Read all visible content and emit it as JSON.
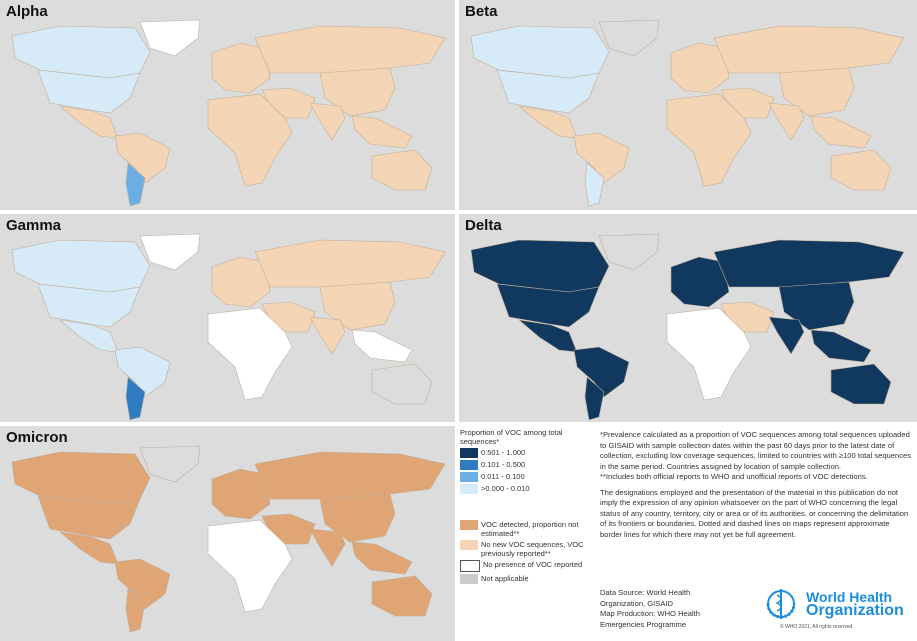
{
  "panels": [
    {
      "title": "Alpha",
      "fills": {
        "greenland": "#ffffff",
        "canada": "#d6eaf7",
        "usa": "#d6eaf7",
        "mexico": "#f3d5b5",
        "samerica": "#f3d5b5",
        "argentina": "#6aaee3",
        "europe": "#f3d5b5",
        "russia": "#f3d5b5",
        "mideast": "#f3d5b5",
        "africa": "#f3d5b5",
        "china": "#f3d5b5",
        "india": "#f3d5b5",
        "seasia": "#f3d5b5",
        "australia": "#f3d5b5"
      }
    },
    {
      "title": "Beta",
      "fills": {
        "greenland": "#dcdcdc",
        "canada": "#d6eaf7",
        "usa": "#d6eaf7",
        "mexico": "#f3d5b5",
        "samerica": "#f3d5b5",
        "argentina": "#d6eaf7",
        "europe": "#f3d5b5",
        "russia": "#f3d5b5",
        "mideast": "#f3d5b5",
        "africa": "#f3d5b5",
        "china": "#f3d5b5",
        "india": "#f3d5b5",
        "seasia": "#f3d5b5",
        "australia": "#f3d5b5"
      }
    },
    {
      "title": "Gamma",
      "fills": {
        "greenland": "#ffffff",
        "canada": "#d6eaf7",
        "usa": "#d6eaf7",
        "mexico": "#d6eaf7",
        "samerica": "#d6eaf7",
        "argentina": "#2f7bbf",
        "europe": "#f3d5b5",
        "russia": "#f3d5b5",
        "mideast": "#f3d5b5",
        "africa": "#ffffff",
        "china": "#f3d5b5",
        "india": "#f3d5b5",
        "seasia": "#ffffff",
        "australia": "#dcdcdc"
      }
    },
    {
      "title": "Delta",
      "fills": {
        "greenland": "#dcdcdc",
        "canada": "#11385e",
        "usa": "#11385e",
        "mexico": "#11385e",
        "samerica": "#11385e",
        "argentina": "#11385e",
        "europe": "#11385e",
        "russia": "#11385e",
        "mideast": "#f3d5b5",
        "africa": "#ffffff",
        "china": "#11385e",
        "india": "#11385e",
        "seasia": "#11385e",
        "australia": "#11385e"
      }
    },
    {
      "title": "Omicron",
      "fills": {
        "greenland": "#dcdcdc",
        "canada": "#e0a575",
        "usa": "#e0a575",
        "mexico": "#e0a575",
        "samerica": "#e0a575",
        "argentina": "#e0a575",
        "europe": "#e0a575",
        "russia": "#e0a575",
        "mideast": "#e0a575",
        "africa": "#ffffff",
        "china": "#e0a575",
        "india": "#e0a575",
        "seasia": "#e0a575",
        "australia": "#e0a575"
      }
    }
  ],
  "legend": {
    "title": "Proportion of VOC among total sequences*",
    "items": [
      {
        "label": "0.501 - 1.000",
        "color": "#11385e"
      },
      {
        "label": "0.101 - 0.500",
        "color": "#2f7bbf"
      },
      {
        "label": "0.011 - 0.100",
        "color": "#6aaee3"
      },
      {
        "label": ">0.000 - 0.010",
        "color": "#d6eaf7"
      }
    ],
    "items2": [
      {
        "label": "VOC detected, proportion not estimated**",
        "color": "#e0a575"
      },
      {
        "label": "No new VOC sequences, VOC previously reported**",
        "color": "#f3d5b5"
      },
      {
        "label": "No presence of VOC reported",
        "color": "#ffffff"
      },
      {
        "label": "Not applicable",
        "color": "#cccccc"
      }
    ]
  },
  "notes": {
    "n1": "*Prevalence calculated as a proportion of VOC sequences among total sequences uploaded to GISAID with sample collection dates within the past 60 days prior to the latest date of collection, excluding low coverage sequences, limited to countries with ≥100 total sequences in the same period. Countries assigned by location of sample collection.",
    "n2": "**Includes both official reports to WHO and unofficial reports of VOC detections.",
    "disclaimer": "The designations employed and the presentation of the material in this publication do not imply the expression of any opinion whatsoever on the part of WHO concerning the legal status of any country, territory, city or area or of its authorities, or concerning the delimitation of its frontiers or boundaries. Dotted and dashed lines on maps represent approximate border lines for which there may not yet be full agreement.",
    "source": "Data Source: World Health Organization, GISAID",
    "production": "Map Production: WHO Health Emergencies Programme"
  },
  "logo": {
    "line1": "World Health",
    "line2": "Organization",
    "copyright": "© WHO 2021, All rights reserved."
  }
}
